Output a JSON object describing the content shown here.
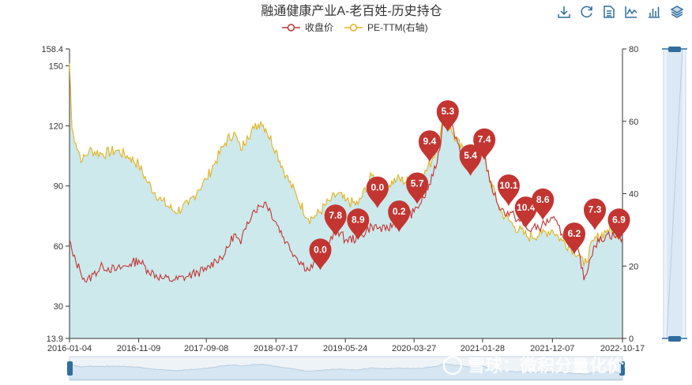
{
  "toolbox": {
    "icons": [
      "download-icon",
      "refresh-icon",
      "data-view-icon",
      "line-chart-icon",
      "bar-chart-icon",
      "stack-icon"
    ]
  },
  "watermark": "雪球：微积分量化价投",
  "chart_data": {
    "type": "line",
    "title": "融通健康产业A-老百姓-历史持仓",
    "legend": [
      "收盘价",
      "PE-TTM(右轴)"
    ],
    "legend_position": "top-center",
    "x_start": "2016-01-04",
    "x_end": "2022-10-17",
    "x_ticks": [
      "2016-01-04",
      "2016-11-09",
      "2017-09-08",
      "2018-07-17",
      "2019-05-24",
      "2020-03-27",
      "2021-01-28",
      "2021-12-07",
      "2022-10-17"
    ],
    "y_left": {
      "min": 13.9,
      "max": 158.4,
      "ticks": [
        13.9,
        30,
        60,
        90,
        120,
        150,
        158.4
      ]
    },
    "y_right": {
      "min": 0,
      "max": 80,
      "ticks": [
        0,
        20,
        40,
        60,
        80
      ]
    },
    "grid": false,
    "colors": {
      "price": "#c23531",
      "pe": "#e3b21c",
      "area": "#cde9ec",
      "pin": "#c23531"
    },
    "series": [
      {
        "name": "收盘价",
        "axis": "left",
        "points": [
          [
            "2016-01-04",
            63
          ],
          [
            "2016-01-20",
            55
          ],
          [
            "2016-02-20",
            48
          ],
          [
            "2016-03-20",
            42
          ],
          [
            "2016-04-20",
            46
          ],
          [
            "2016-06-01",
            50
          ],
          [
            "2016-08-01",
            48
          ],
          [
            "2016-10-01",
            51
          ],
          [
            "2016-11-09",
            53
          ],
          [
            "2016-12-20",
            48
          ],
          [
            "2017-02-20",
            44
          ],
          [
            "2017-04-20",
            43
          ],
          [
            "2017-06-20",
            45
          ],
          [
            "2017-08-01",
            47
          ],
          [
            "2017-09-08",
            48
          ],
          [
            "2017-10-20",
            53
          ],
          [
            "2017-12-01",
            56
          ],
          [
            "2018-01-10",
            66
          ],
          [
            "2018-02-10",
            61
          ],
          [
            "2018-03-10",
            72
          ],
          [
            "2018-04-10",
            78
          ],
          [
            "2018-05-10",
            80
          ],
          [
            "2018-06-01",
            82
          ],
          [
            "2018-07-17",
            72
          ],
          [
            "2018-09-01",
            62
          ],
          [
            "2018-10-20",
            54
          ],
          [
            "2018-12-10",
            48
          ],
          [
            "2019-01-15",
            52
          ],
          [
            "2019-03-15",
            62
          ],
          [
            "2019-04-20",
            68
          ],
          [
            "2019-05-24",
            63
          ],
          [
            "2019-07-20",
            64
          ],
          [
            "2019-09-20",
            70
          ],
          [
            "2019-11-20",
            68
          ],
          [
            "2020-01-10",
            72
          ],
          [
            "2020-03-27",
            77
          ],
          [
            "2020-05-10",
            84
          ],
          [
            "2020-06-20",
            95
          ],
          [
            "2020-07-20",
            108
          ],
          [
            "2020-08-10",
            130
          ],
          [
            "2020-09-20",
            118
          ],
          [
            "2020-11-20",
            98
          ],
          [
            "2021-01-28",
            110
          ],
          [
            "2021-03-01",
            92
          ],
          [
            "2021-04-20",
            78
          ],
          [
            "2021-06-20",
            75
          ],
          [
            "2021-08-20",
            68
          ],
          [
            "2021-10-20",
            70
          ],
          [
            "2021-12-07",
            74
          ],
          [
            "2022-01-20",
            66
          ],
          [
            "2022-03-01",
            62
          ],
          [
            "2022-04-10",
            55
          ],
          [
            "2022-04-27",
            43
          ],
          [
            "2022-06-10",
            60
          ],
          [
            "2022-08-10",
            66
          ],
          [
            "2022-10-17",
            64
          ]
        ]
      },
      {
        "name": "PE-TTM(右轴)",
        "axis": "right",
        "area": true,
        "points": [
          [
            "2016-01-04",
            76
          ],
          [
            "2016-01-15",
            58
          ],
          [
            "2016-02-01",
            54
          ],
          [
            "2016-03-01",
            49
          ],
          [
            "2016-04-01",
            52
          ],
          [
            "2016-06-01",
            51
          ],
          [
            "2016-08-01",
            52
          ],
          [
            "2016-10-01",
            50
          ],
          [
            "2016-11-09",
            48
          ],
          [
            "2016-12-20",
            43
          ],
          [
            "2017-02-20",
            38
          ],
          [
            "2017-04-20",
            35
          ],
          [
            "2017-06-20",
            37
          ],
          [
            "2017-08-01",
            41
          ],
          [
            "2017-09-08",
            44
          ],
          [
            "2017-10-20",
            49
          ],
          [
            "2017-12-01",
            54
          ],
          [
            "2018-01-10",
            57
          ],
          [
            "2018-02-10",
            52
          ],
          [
            "2018-03-10",
            56
          ],
          [
            "2018-04-10",
            58
          ],
          [
            "2018-05-10",
            60
          ],
          [
            "2018-06-01",
            58
          ],
          [
            "2018-07-17",
            52
          ],
          [
            "2018-09-01",
            45
          ],
          [
            "2018-10-20",
            39
          ],
          [
            "2018-12-10",
            33
          ],
          [
            "2019-01-15",
            34
          ],
          [
            "2019-03-15",
            38
          ],
          [
            "2019-04-20",
            40
          ],
          [
            "2019-05-24",
            38
          ],
          [
            "2019-07-20",
            37
          ],
          [
            "2019-09-20",
            45
          ],
          [
            "2019-11-20",
            42
          ],
          [
            "2020-01-10",
            44
          ],
          [
            "2020-03-27",
            43
          ],
          [
            "2020-05-10",
            45
          ],
          [
            "2020-06-20",
            50
          ],
          [
            "2020-07-20",
            55
          ],
          [
            "2020-08-10",
            62
          ],
          [
            "2020-09-20",
            56
          ],
          [
            "2020-11-20",
            50
          ],
          [
            "2021-01-28",
            52
          ],
          [
            "2021-03-01",
            44
          ],
          [
            "2021-04-20",
            35
          ],
          [
            "2021-06-20",
            31
          ],
          [
            "2021-08-20",
            28
          ],
          [
            "2021-10-20",
            29
          ],
          [
            "2021-12-07",
            30
          ],
          [
            "2022-01-20",
            27
          ],
          [
            "2022-03-01",
            25
          ],
          [
            "2022-04-10",
            23
          ],
          [
            "2022-04-27",
            20
          ],
          [
            "2022-06-10",
            27
          ],
          [
            "2022-08-10",
            30
          ],
          [
            "2022-10-17",
            29
          ]
        ]
      }
    ],
    "annotations": [
      {
        "label": "0.0",
        "date": "2019-02-01",
        "value": 48
      },
      {
        "label": "7.8",
        "date": "2019-04-10",
        "value": 65
      },
      {
        "label": "8.9",
        "date": "2019-07-20",
        "value": 63
      },
      {
        "label": "0.0",
        "date": "2019-10-15",
        "value": 79
      },
      {
        "label": "0.2",
        "date": "2020-01-20",
        "value": 67
      },
      {
        "label": "5.7",
        "date": "2020-04-10",
        "value": 81
      },
      {
        "label": "9.4",
        "date": "2020-06-05",
        "value": 102
      },
      {
        "label": "5.3",
        "date": "2020-08-25",
        "value": 117
      },
      {
        "label": "5.4",
        "date": "2020-12-05",
        "value": 95
      },
      {
        "label": "7.4",
        "date": "2021-02-05",
        "value": 103
      },
      {
        "label": "10.1",
        "date": "2021-05-25",
        "value": 80
      },
      {
        "label": "10.4",
        "date": "2021-08-10",
        "value": 69
      },
      {
        "label": "8.6",
        "date": "2021-10-25",
        "value": 73
      },
      {
        "label": "6.2",
        "date": "2022-03-15",
        "value": 56
      },
      {
        "label": "7.3",
        "date": "2022-06-15",
        "value": 68
      },
      {
        "label": "6.9",
        "date": "2022-10-01",
        "value": 63
      }
    ]
  }
}
